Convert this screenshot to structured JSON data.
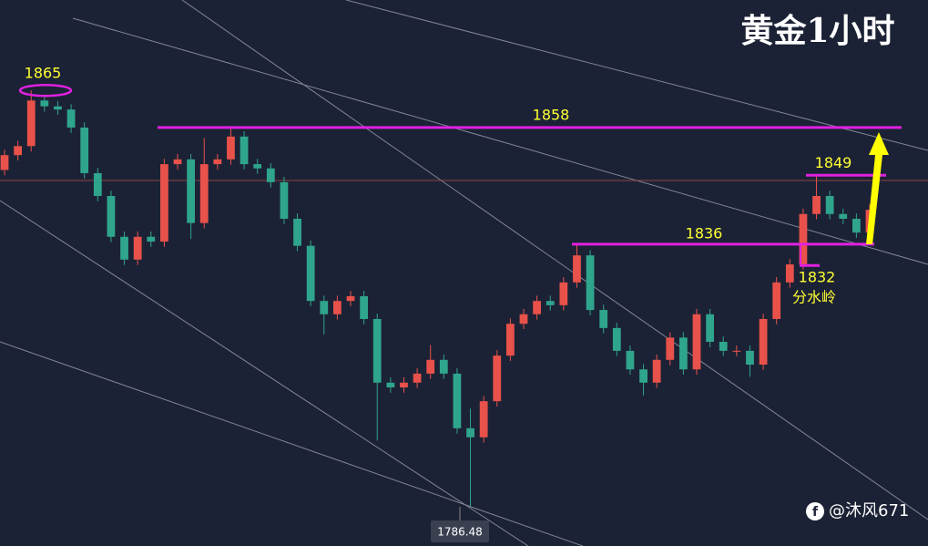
{
  "chart_data": {
    "type": "candlestick",
    "title": "黄金1小时",
    "ylim": [
      1779.1,
      1882.05
    ],
    "up_color": "#e8524a",
    "down_color": "#2fa58d",
    "level_color": "#e020e0",
    "open": [
      1850.0,
      1852.8,
      1854.5,
      1863.1,
      1862.0,
      1861.4,
      1858.0,
      1849.4,
      1845.1,
      1837.4,
      1833.1,
      1837.4,
      1836.5,
      1851.1,
      1852.0,
      1840.0,
      1851.1,
      1852.0,
      1856.3,
      1851.1,
      1850.3,
      1847.7,
      1840.8,
      1835.7,
      1825.3,
      1822.8,
      1825.3,
      1826.2,
      1821.9,
      1809.9,
      1809.0,
      1809.9,
      1811.6,
      1814.2,
      1811.6,
      1801.3,
      1799.6,
      1806.4,
      1815.0,
      1821.0,
      1822.8,
      1825.3,
      1824.5,
      1828.8,
      1833.9,
      1823.6,
      1820.2,
      1815.9,
      1812.4,
      1809.9,
      1814.2,
      1818.4,
      1812.4,
      1822.8,
      1817.6,
      1815.9,
      1815.9,
      1813.3,
      1821.9,
      1828.8,
      1832.2,
      1841.7,
      1845.1,
      1841.7,
      1840.8,
      1838.2
    ],
    "high": [
      1853.8,
      1855.5,
      1865,
      1864.1,
      1863.0,
      1862.4,
      1859.0,
      1850.4,
      1846.1,
      1838.4,
      1838.4,
      1838.4,
      1852.1,
      1853.0,
      1853.0,
      1856.0,
      1853.0,
      1857.8,
      1857.3,
      1852.1,
      1851.3,
      1848.7,
      1841.8,
      1836.7,
      1826.3,
      1826.3,
      1827.2,
      1827.2,
      1822.9,
      1810.9,
      1810.9,
      1812.6,
      1817.0,
      1815.2,
      1812.6,
      1805.0,
      1807.4,
      1816.0,
      1822.0,
      1823.8,
      1826.3,
      1826.3,
      1829.8,
      1836.0,
      1834.9,
      1824.6,
      1821.2,
      1816.9,
      1813.4,
      1815.2,
      1819.4,
      1819.4,
      1823.8,
      1823.8,
      1818.6,
      1816.9,
      1816.9,
      1822.9,
      1829.8,
      1833.2,
      1842.7,
      1849.0,
      1846.1,
      1842.7,
      1841.8,
      1843.5
    ],
    "low": [
      1849.0,
      1851.8,
      1853.5,
      1861.0,
      1860.4,
      1857.0,
      1848.4,
      1844.1,
      1836.4,
      1832.1,
      1832.1,
      1835.5,
      1835.5,
      1850.1,
      1837.0,
      1839.0,
      1850.1,
      1851.0,
      1850.1,
      1849.3,
      1846.7,
      1839.8,
      1834.7,
      1824.3,
      1819.0,
      1821.8,
      1824.3,
      1820.9,
      1799.0,
      1808.0,
      1808.0,
      1808.9,
      1810.6,
      1810.6,
      1800.3,
      1786.48,
      1798.6,
      1805.4,
      1814.0,
      1820.0,
      1821.8,
      1823.5,
      1823.5,
      1827.8,
      1822.6,
      1819.2,
      1814.9,
      1811.4,
      1807.5,
      1808.9,
      1813.2,
      1811.4,
      1811.4,
      1816.6,
      1814.9,
      1814.9,
      1811.0,
      1812.3,
      1820.9,
      1827.8,
      1831.2,
      1840.7,
      1840.7,
      1839.8,
      1837.2,
      1837.2
    ],
    "close": [
      1852.8,
      1854.5,
      1863.1,
      1862.0,
      1861.4,
      1858.0,
      1849.4,
      1845.1,
      1837.4,
      1833.1,
      1837.4,
      1836.5,
      1851.1,
      1852.0,
      1840.0,
      1851.1,
      1852.0,
      1856.3,
      1851.1,
      1850.3,
      1847.7,
      1840.8,
      1835.7,
      1825.3,
      1822.8,
      1825.3,
      1826.2,
      1821.9,
      1809.9,
      1809.0,
      1809.9,
      1811.6,
      1814.2,
      1811.6,
      1801.3,
      1799.6,
      1806.4,
      1815.0,
      1821.0,
      1822.8,
      1825.3,
      1824.5,
      1828.8,
      1833.9,
      1823.6,
      1820.2,
      1815.9,
      1812.4,
      1809.9,
      1814.2,
      1818.4,
      1812.4,
      1822.8,
      1817.6,
      1815.9,
      1815.9,
      1813.3,
      1821.9,
      1828.8,
      1832.2,
      1841.7,
      1845.1,
      1841.7,
      1840.8,
      1838.2,
      1842.5
    ],
    "levels": [
      1865,
      1858,
      1849,
      1836,
      1832
    ],
    "annotation": "分水岭",
    "watermark": "@沐风671"
  }
}
